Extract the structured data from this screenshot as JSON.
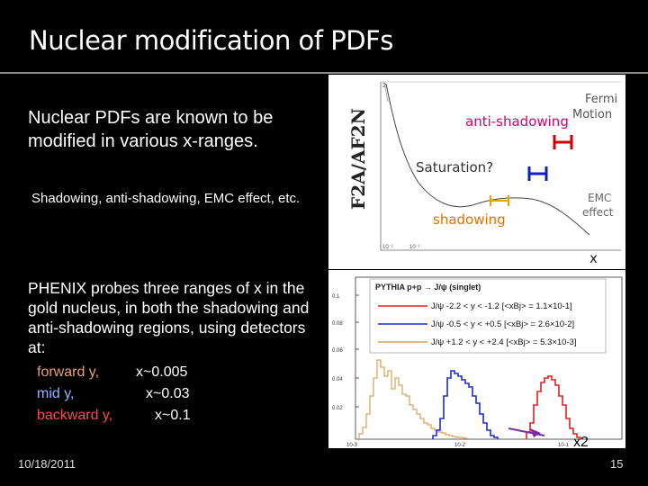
{
  "title": "Nuclear modification of PDFs",
  "paragraph1": "Nuclear PDFs are known to be modified in various x-ranges.",
  "paragraph2": "Shadowing, anti-shadowing, EMC effect, etc.",
  "paragraph3": "PHENIX probes three ranges of x in the gold nucleus, in both the shadowing and anti-shadowing regions, using detectors at:",
  "detectors": [
    {
      "name": "forward y,",
      "x": "x~0.005",
      "color": "#e8a070"
    },
    {
      "name": "mid y,",
      "x": "x~0.03",
      "color": "#8fb4ff"
    },
    {
      "name": "backward y,",
      "x": "x~0.1",
      "color": "#ff4a4a"
    }
  ],
  "top_figure": {
    "ylabel": "F2A/AF2N",
    "annotations": {
      "fermi": "Fermi",
      "motion": "Motion",
      "anti_shadowing": "anti-shadowing",
      "saturation": "Saturation?",
      "shadowing": "shadowing",
      "emc": "EMC",
      "effect": "effect",
      "x_marker": "x"
    }
  },
  "bottom_figure": {
    "legend_title": "PYTHIA p+p → J/ψ (singlet)",
    "legend": [
      {
        "label": "J/ψ -2.2 < y < -1.2 [<xBj> = 1.1×10-1]",
        "color": "#e02020"
      },
      {
        "label": "J/ψ -0.5 < y < +0.5 [<xBj> = 2.6×10-2]",
        "color": "#1a2fc8"
      },
      {
        "label": "J/ψ +1.2 < y < +2.4 [<xBj> = 5.3×10-3]",
        "color": "#d9a15a"
      }
    ],
    "yticks": [
      "0.1",
      "0.08",
      "0.06",
      "0.04",
      "0.02"
    ],
    "xticks": [
      "10-3",
      "10-2",
      "10-1"
    ],
    "xlabel": "x2"
  },
  "footer": {
    "date": "10/18/2011",
    "page": "15"
  }
}
